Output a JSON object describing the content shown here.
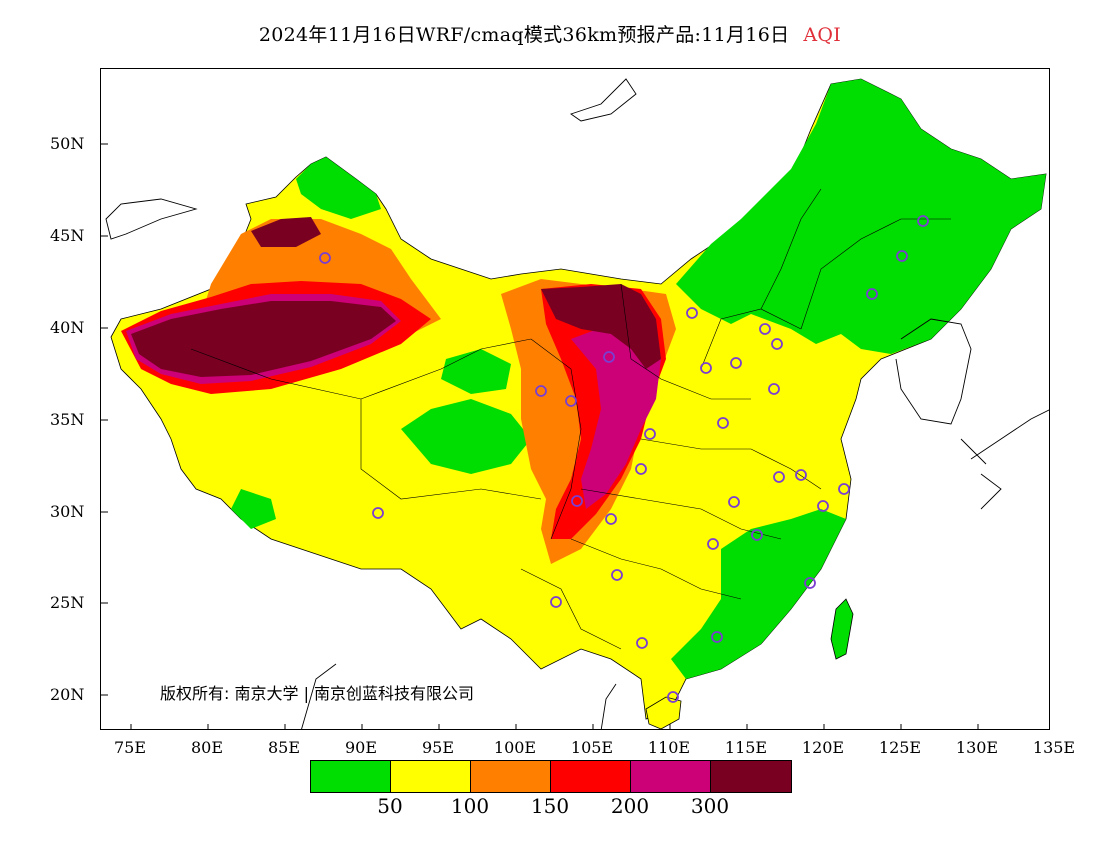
{
  "title": {
    "text": "2024年11月16日WRF/cmaq模式36km预报产品:11月16日",
    "variable": "AQI"
  },
  "axes": {
    "y_labels": [
      "50N",
      "45N",
      "40N",
      "35N",
      "30N",
      "25N",
      "20N"
    ],
    "x_labels": [
      "75E",
      "80E",
      "85E",
      "90E",
      "95E",
      "100E",
      "105E",
      "110E",
      "115E",
      "120E",
      "125E",
      "130E",
      "135E"
    ]
  },
  "copyright": "版权所有: 南京大学 | 南京创蓝科技有限公司",
  "legend": {
    "colors": [
      "#00dd00",
      "#ffff00",
      "#ff8000",
      "#ff0000",
      "#cc0077",
      "#7a0022"
    ],
    "labels": [
      "50",
      "100",
      "150",
      "200",
      "300"
    ]
  }
}
